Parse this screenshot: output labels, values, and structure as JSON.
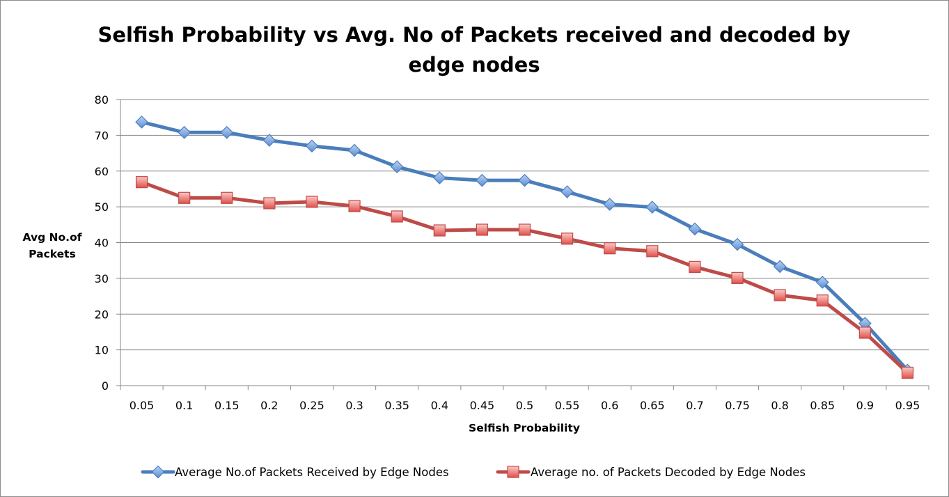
{
  "chart_data": {
    "type": "line",
    "title": "Selfish Probability vs Avg. No of Packets received and decoded by edge nodes",
    "title_lines": [
      "Selfish Probability vs Avg. No of Packets received and decoded by",
      "edge nodes"
    ],
    "xlabel": "Selfish Probability",
    "ylabel_lines": [
      "Avg No.of",
      "Packets"
    ],
    "categories": [
      "0.05",
      "0.1",
      "0.15",
      "0.2",
      "0.25",
      "0.3",
      "0.35",
      "0.4",
      "0.45",
      "0.5",
      "0.55",
      "0.6",
      "0.65",
      "0.7",
      "0.75",
      "0.8",
      "0.85",
      "0.9",
      "0.95"
    ],
    "ylim": [
      0,
      80
    ],
    "yticks": [
      "0",
      "10",
      "20",
      "30",
      "40",
      "50",
      "60",
      "70",
      "80"
    ],
    "grid": true,
    "legend_position": "bottom",
    "series": [
      {
        "name": "Average No.of Packets Received by Edge Nodes",
        "color": "#4a7ebb",
        "marker": "diamond",
        "values": [
          73.7,
          70.8,
          70.8,
          68.6,
          67.0,
          65.8,
          61.2,
          58.1,
          57.4,
          57.4,
          54.2,
          50.7,
          49.9,
          43.8,
          39.5,
          33.3,
          28.9,
          17.4,
          4.3
        ]
      },
      {
        "name": "Average no. of Packets Decoded by Edge Nodes",
        "color": "#be4b48",
        "marker": "square",
        "values": [
          56.9,
          52.5,
          52.5,
          51.0,
          51.4,
          50.2,
          47.3,
          43.4,
          43.6,
          43.6,
          41.1,
          38.4,
          37.6,
          33.2,
          30.1,
          25.3,
          23.8,
          14.8,
          3.6
        ]
      }
    ]
  }
}
